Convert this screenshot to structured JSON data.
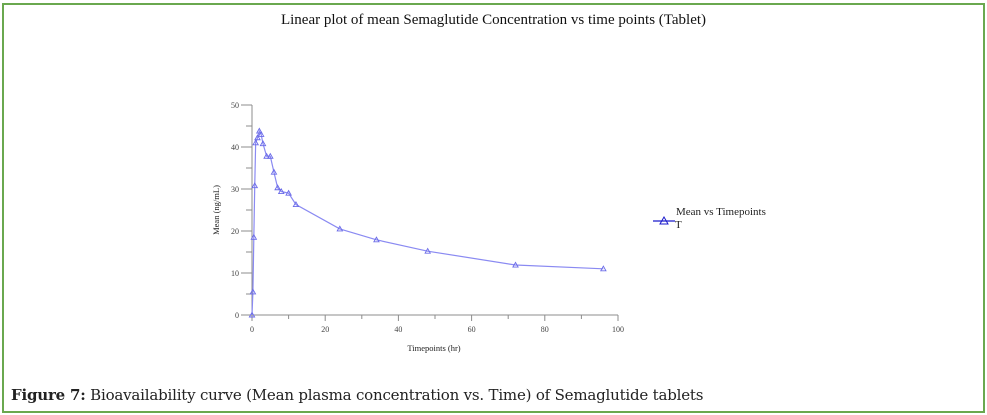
{
  "figure": {
    "caption_label": "Figure 7:",
    "caption_text": " Bioavailability curve (Mean plasma concentration vs. Time) of Semaglutide tablets",
    "border_color": "#6aa84f"
  },
  "chart_data": {
    "type": "line",
    "title": "Linear plot of mean Semaglutide Concentration vs time points (Tablet)",
    "xlabel": "Timepoints (hr)",
    "ylabel": "Mean (ng/mL)",
    "xlim": [
      0,
      100
    ],
    "ylim": [
      0,
      50
    ],
    "x_ticks_major": [
      0,
      20,
      40,
      60,
      80,
      100
    ],
    "x_ticks_minor": [
      10,
      30,
      50,
      70,
      90
    ],
    "y_ticks_major": [
      0,
      10,
      20,
      30,
      40,
      50
    ],
    "y_ticks_minor": [
      5,
      15,
      25,
      35,
      45
    ],
    "grid": false,
    "legend": {
      "position": "right",
      "entries": [
        "Mean vs Timepoints"
      ],
      "marker": "triangle",
      "extra_text": "T"
    },
    "series": [
      {
        "name": "Mean vs Timepoints",
        "color": "#8a8af2",
        "marker": "triangle",
        "x": [
          0,
          0.25,
          0.5,
          0.75,
          1,
          1.5,
          2,
          2.5,
          3,
          4,
          5,
          6,
          7,
          8,
          10,
          12,
          24,
          34,
          48,
          72,
          96
        ],
        "y": [
          0,
          5.5,
          18.5,
          30.8,
          41.0,
          42.2,
          43.8,
          43.0,
          40.8,
          37.8,
          37.8,
          34.0,
          30.3,
          29.4,
          29.0,
          26.3,
          20.5,
          17.9,
          15.2,
          11.9,
          11.0
        ]
      }
    ]
  }
}
